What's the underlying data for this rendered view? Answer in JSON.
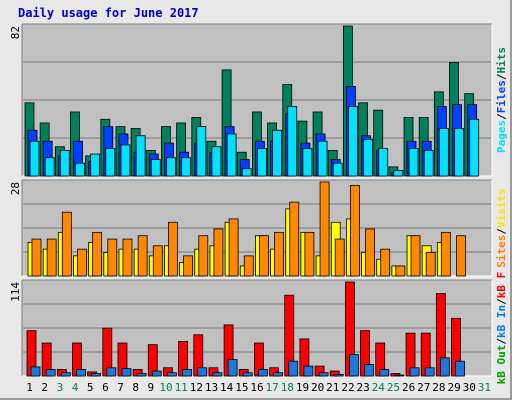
{
  "title": "Daily usage for June 2017",
  "chart_data": [
    {
      "type": "bar",
      "panel": "hits-files-pages",
      "ymax_label": "82",
      "ylim": [
        0,
        82
      ],
      "legend": [
        {
          "name": "Hits",
          "color": "#00805c"
        },
        {
          "name": "Files",
          "color": "#0040ff"
        },
        {
          "name": "Pages",
          "color": "#00e0ff"
        }
      ],
      "legend_separator": "/",
      "series": [
        {
          "name": "Hits",
          "color": "#00805c",
          "values": [
            40,
            29,
            16,
            35,
            11,
            31,
            27,
            26,
            14,
            27,
            29,
            32,
            19,
            58,
            13,
            35,
            29,
            50,
            30,
            35,
            14,
            82,
            40,
            36,
            5,
            32,
            32,
            46,
            62,
            45
          ]
        },
        {
          "name": "Files",
          "color": "#0040ff",
          "values": [
            25,
            19,
            11,
            19,
            8,
            27,
            23,
            13,
            12,
            18,
            13,
            18,
            13,
            27,
            9,
            19,
            19,
            34,
            18,
            23,
            9,
            49,
            22,
            14,
            2,
            19,
            19,
            38,
            39,
            39
          ]
        },
        {
          "name": "Pages",
          "color": "#00e0ff",
          "values": [
            19,
            10,
            14,
            7,
            12,
            15,
            17,
            22,
            9,
            10,
            10,
            27,
            16,
            23,
            4,
            15,
            25,
            38,
            15,
            19,
            7,
            38,
            20,
            15,
            3,
            15,
            14,
            26,
            26,
            31
          ]
        }
      ]
    },
    {
      "type": "bar",
      "panel": "visits-sites",
      "ymax_label": "28",
      "ylim": [
        0,
        28
      ],
      "legend": [
        {
          "name": "Visits",
          "color": "#ffe200"
        },
        {
          "name": "Sites",
          "color": "#ff8000"
        }
      ],
      "legend_separator": "/",
      "series": [
        {
          "name": "Visits",
          "color": "#ffff00",
          "values": [
            10,
            8,
            13,
            6,
            10,
            7,
            8,
            8,
            6,
            9,
            4,
            8,
            9,
            16,
            3,
            12,
            8,
            20,
            13,
            6,
            16,
            17,
            7,
            5,
            3,
            12,
            9,
            10,
            0,
            0
          ]
        },
        {
          "name": "Sites",
          "color": "#ff8800",
          "values": [
            11,
            11,
            19,
            8,
            13,
            11,
            11,
            12,
            9,
            16,
            6,
            12,
            14,
            17,
            6,
            12,
            13,
            22,
            13,
            28,
            11,
            27,
            14,
            8,
            3,
            12,
            7,
            13,
            12,
            0
          ]
        }
      ]
    },
    {
      "type": "bar",
      "panel": "kbf-kbin-kbout",
      "ymax_label": "114",
      "ylim": [
        0,
        114
      ],
      "legend": [
        {
          "name": "kB F",
          "color": "#ff0000"
        },
        {
          "name": "kB In",
          "color": "#0080ff"
        },
        {
          "name": "kB Out",
          "color": "#00a000"
        }
      ],
      "legend_separator": "/",
      "series": [
        {
          "name": "kB F",
          "color": "#ff0000",
          "values": [
            55,
            40,
            8,
            40,
            5,
            58,
            40,
            8,
            38,
            10,
            42,
            50,
            10,
            62,
            8,
            40,
            10,
            98,
            45,
            12,
            6,
            114,
            55,
            40,
            3,
            52,
            52,
            100,
            70,
            0
          ]
        },
        {
          "name": "kB In",
          "color": "#1f78d8",
          "values": [
            11,
            8,
            4,
            8,
            3,
            10,
            9,
            3,
            6,
            4,
            8,
            10,
            4,
            20,
            4,
            8,
            4,
            18,
            12,
            4,
            2,
            26,
            14,
            8,
            1,
            10,
            10,
            22,
            18,
            0
          ]
        }
      ]
    }
  ],
  "x_axis": {
    "days": [
      "1",
      "2",
      "3",
      "4",
      "5",
      "6",
      "7",
      "8",
      "9",
      "10",
      "11",
      "12",
      "13",
      "14",
      "15",
      "16",
      "17",
      "18",
      "19",
      "20",
      "21",
      "22",
      "23",
      "24",
      "25",
      "26",
      "27",
      "28",
      "29",
      "30",
      "31"
    ],
    "weekend_days": [
      3,
      4,
      10,
      11,
      17,
      18,
      24,
      25,
      31
    ],
    "weekday_color": "#000000",
    "weekend_color": "#00805c"
  },
  "colors": {
    "panel_bg": "#c0c0c0",
    "gridline": "#7a7a7a",
    "frame_bg": "#e8e8e8",
    "title": "#0000cc"
  }
}
